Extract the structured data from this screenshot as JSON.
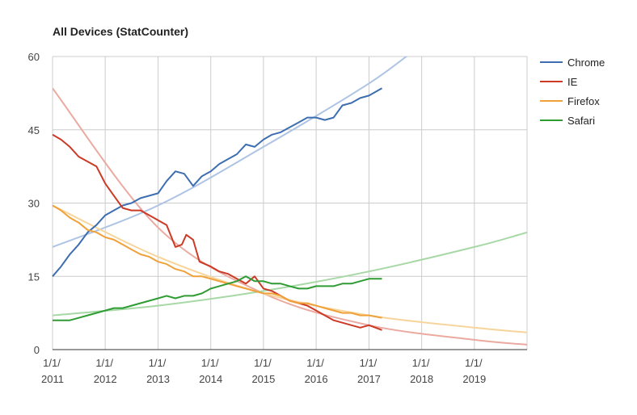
{
  "chart_data": {
    "type": "line",
    "title": "All Devices (StatCounter)",
    "xlabel": "",
    "ylabel": "",
    "xlim": [
      "2011-01-01",
      "2020-01-01"
    ],
    "ylim": [
      0,
      60
    ],
    "x_ticks": [
      {
        "value": "2011-01-01",
        "line1": "1/1/",
        "line2": "2011"
      },
      {
        "value": "2012-01-01",
        "line1": "1/1/",
        "line2": "2012"
      },
      {
        "value": "2013-01-01",
        "line1": "1/1/",
        "line2": "2013"
      },
      {
        "value": "2014-01-01",
        "line1": "1/1/",
        "line2": "2014"
      },
      {
        "value": "2015-01-01",
        "line1": "1/1/",
        "line2": "2015"
      },
      {
        "value": "2016-01-01",
        "line1": "1/1/",
        "line2": "2016"
      },
      {
        "value": "2017-01-01",
        "line1": "1/1/",
        "line2": "2017"
      },
      {
        "value": "2018-01-01",
        "line1": "1/1/",
        "line2": "2018"
      },
      {
        "value": "2019-01-01",
        "line1": "1/1/",
        "line2": "2019"
      }
    ],
    "y_ticks": [
      {
        "value": 0,
        "label": "0"
      },
      {
        "value": 15,
        "label": "15"
      },
      {
        "value": 30,
        "label": "30"
      },
      {
        "value": 45,
        "label": "45"
      },
      {
        "value": 60,
        "label": "60"
      }
    ],
    "grid": true,
    "legend_position": "right",
    "series": [
      {
        "name": "Chrome",
        "color": "#3d6eb1",
        "trend_color": "#aec4e4",
        "trend": {
          "kind": "exponential",
          "points": [
            [
              "2011-01-01",
              21.0
            ],
            [
              "2013-01-01",
              29.5
            ],
            [
              "2015-01-01",
              41.5
            ],
            [
              "2017-01-01",
              54.5
            ],
            [
              "2018-01-01",
              62.5
            ]
          ]
        },
        "points": [
          [
            "2011-01-01",
            15.0
          ],
          [
            "2011-03-01",
            17.0
          ],
          [
            "2011-05-01",
            19.5
          ],
          [
            "2011-07-01",
            21.5
          ],
          [
            "2011-09-01",
            24.0
          ],
          [
            "2011-11-01",
            25.5
          ],
          [
            "2012-01-01",
            27.5
          ],
          [
            "2012-03-01",
            28.5
          ],
          [
            "2012-05-01",
            29.5
          ],
          [
            "2012-07-01",
            30.0
          ],
          [
            "2012-09-01",
            31.0
          ],
          [
            "2012-11-01",
            31.5
          ],
          [
            "2013-01-01",
            32.0
          ],
          [
            "2013-03-01",
            34.5
          ],
          [
            "2013-05-01",
            36.5
          ],
          [
            "2013-07-01",
            36.0
          ],
          [
            "2013-09-01",
            33.5
          ],
          [
            "2013-11-01",
            35.5
          ],
          [
            "2014-01-01",
            36.5
          ],
          [
            "2014-03-01",
            38.0
          ],
          [
            "2014-05-01",
            39.0
          ],
          [
            "2014-07-01",
            40.0
          ],
          [
            "2014-09-01",
            42.0
          ],
          [
            "2014-11-01",
            41.5
          ],
          [
            "2015-01-01",
            43.0
          ],
          [
            "2015-03-01",
            44.0
          ],
          [
            "2015-05-01",
            44.5
          ],
          [
            "2015-07-01",
            45.5
          ],
          [
            "2015-09-01",
            46.5
          ],
          [
            "2015-11-01",
            47.5
          ],
          [
            "2016-01-01",
            47.5
          ],
          [
            "2016-03-01",
            47.0
          ],
          [
            "2016-05-01",
            47.5
          ],
          [
            "2016-07-01",
            50.0
          ],
          [
            "2016-09-01",
            50.5
          ],
          [
            "2016-11-01",
            51.5
          ],
          [
            "2017-01-01",
            52.0
          ],
          [
            "2017-04-01",
            53.5
          ]
        ]
      },
      {
        "name": "IE",
        "color": "#cc3a26",
        "trend_color": "#eaaaa0",
        "trend": {
          "kind": "exponential",
          "points": [
            [
              "2011-01-01",
              53.5
            ],
            [
              "2013-01-01",
              25.0
            ],
            [
              "2015-01-01",
              11.5
            ],
            [
              "2017-01-01",
              5.0
            ],
            [
              "2019-01-01",
              2.0
            ],
            [
              "2020-01-01",
              1.0
            ]
          ]
        },
        "points": [
          [
            "2011-01-01",
            44.0
          ],
          [
            "2011-03-01",
            43.0
          ],
          [
            "2011-05-01",
            41.5
          ],
          [
            "2011-07-01",
            39.5
          ],
          [
            "2011-09-01",
            38.5
          ],
          [
            "2011-11-01",
            37.5
          ],
          [
            "2012-01-01",
            34.0
          ],
          [
            "2012-03-01",
            31.5
          ],
          [
            "2012-05-01",
            29.0
          ],
          [
            "2012-07-01",
            28.5
          ],
          [
            "2012-09-01",
            28.5
          ],
          [
            "2012-11-01",
            27.5
          ],
          [
            "2013-01-01",
            26.5
          ],
          [
            "2013-03-01",
            25.5
          ],
          [
            "2013-05-01",
            21.0
          ],
          [
            "2013-06-15",
            21.5
          ],
          [
            "2013-07-15",
            23.5
          ],
          [
            "2013-09-01",
            22.5
          ],
          [
            "2013-10-15",
            18.0
          ],
          [
            "2014-01-01",
            17.0
          ],
          [
            "2014-03-01",
            16.0
          ],
          [
            "2014-05-01",
            15.5
          ],
          [
            "2014-07-01",
            14.5
          ],
          [
            "2014-09-01",
            13.5
          ],
          [
            "2014-11-01",
            15.0
          ],
          [
            "2015-01-01",
            12.5
          ],
          [
            "2015-03-01",
            12.0
          ],
          [
            "2015-05-01",
            11.0
          ],
          [
            "2015-07-01",
            10.0
          ],
          [
            "2015-09-01",
            9.5
          ],
          [
            "2015-11-01",
            9.0
          ],
          [
            "2016-01-01",
            8.0
          ],
          [
            "2016-03-01",
            7.0
          ],
          [
            "2016-05-01",
            6.0
          ],
          [
            "2016-07-01",
            5.5
          ],
          [
            "2016-09-01",
            5.0
          ],
          [
            "2016-11-01",
            4.5
          ],
          [
            "2017-01-01",
            5.0
          ],
          [
            "2017-04-01",
            4.0
          ]
        ]
      },
      {
        "name": "Firefox",
        "color": "#f0a13a",
        "trend_color": "#f7d49a",
        "trend": {
          "kind": "exponential",
          "points": [
            [
              "2011-01-01",
              29.5
            ],
            [
              "2013-01-01",
              19.0
            ],
            [
              "2015-01-01",
              11.5
            ],
            [
              "2017-01-01",
              7.0
            ],
            [
              "2019-01-01",
              4.5
            ],
            [
              "2020-01-01",
              3.5
            ]
          ]
        },
        "points": [
          [
            "2011-01-01",
            29.5
          ],
          [
            "2011-03-01",
            28.5
          ],
          [
            "2011-05-01",
            27.0
          ],
          [
            "2011-07-01",
            26.0
          ],
          [
            "2011-09-01",
            24.5
          ],
          [
            "2011-11-01",
            24.0
          ],
          [
            "2012-01-01",
            23.0
          ],
          [
            "2012-03-01",
            22.5
          ],
          [
            "2012-05-01",
            21.5
          ],
          [
            "2012-07-01",
            20.5
          ],
          [
            "2012-09-01",
            19.5
          ],
          [
            "2012-11-01",
            19.0
          ],
          [
            "2013-01-01",
            18.0
          ],
          [
            "2013-03-01",
            17.5
          ],
          [
            "2013-05-01",
            16.5
          ],
          [
            "2013-07-01",
            16.0
          ],
          [
            "2013-09-01",
            15.0
          ],
          [
            "2013-11-01",
            15.0
          ],
          [
            "2014-01-01",
            14.5
          ],
          [
            "2014-03-01",
            14.0
          ],
          [
            "2014-05-01",
            13.5
          ],
          [
            "2014-07-01",
            13.0
          ],
          [
            "2014-09-01",
            12.5
          ],
          [
            "2014-11-01",
            12.0
          ],
          [
            "2015-01-01",
            11.5
          ],
          [
            "2015-03-01",
            11.5
          ],
          [
            "2015-05-01",
            11.0
          ],
          [
            "2015-07-01",
            10.0
          ],
          [
            "2015-09-01",
            9.5
          ],
          [
            "2015-11-01",
            9.5
          ],
          [
            "2016-01-01",
            9.0
          ],
          [
            "2016-03-01",
            8.5
          ],
          [
            "2016-05-01",
            8.0
          ],
          [
            "2016-07-01",
            7.5
          ],
          [
            "2016-09-01",
            7.5
          ],
          [
            "2016-11-01",
            7.0
          ],
          [
            "2017-01-01",
            7.0
          ],
          [
            "2017-04-01",
            6.5
          ]
        ]
      },
      {
        "name": "Safari",
        "color": "#2e9c33",
        "trend_color": "#a7d8a6",
        "trend": {
          "kind": "exponential",
          "points": [
            [
              "2011-01-01",
              7.0
            ],
            [
              "2013-01-01",
              9.0
            ],
            [
              "2015-01-01",
              12.0
            ],
            [
              "2017-01-01",
              16.0
            ],
            [
              "2019-01-01",
              21.0
            ],
            [
              "2020-01-01",
              24.0
            ]
          ]
        },
        "points": [
          [
            "2011-01-01",
            6.0
          ],
          [
            "2011-03-01",
            6.0
          ],
          [
            "2011-05-01",
            6.0
          ],
          [
            "2011-07-01",
            6.5
          ],
          [
            "2011-09-01",
            7.0
          ],
          [
            "2011-11-01",
            7.5
          ],
          [
            "2012-01-01",
            8.0
          ],
          [
            "2012-03-01",
            8.5
          ],
          [
            "2012-05-01",
            8.5
          ],
          [
            "2012-07-01",
            9.0
          ],
          [
            "2012-09-01",
            9.5
          ],
          [
            "2012-11-01",
            10.0
          ],
          [
            "2013-01-01",
            10.5
          ],
          [
            "2013-03-01",
            11.0
          ],
          [
            "2013-05-01",
            10.5
          ],
          [
            "2013-07-01",
            11.0
          ],
          [
            "2013-09-01",
            11.0
          ],
          [
            "2013-11-01",
            11.5
          ],
          [
            "2014-01-01",
            12.5
          ],
          [
            "2014-03-01",
            13.0
          ],
          [
            "2014-05-01",
            13.5
          ],
          [
            "2014-07-01",
            14.0
          ],
          [
            "2014-09-01",
            15.0
          ],
          [
            "2014-11-01",
            14.0
          ],
          [
            "2015-01-01",
            14.0
          ],
          [
            "2015-03-01",
            13.5
          ],
          [
            "2015-05-01",
            13.5
          ],
          [
            "2015-07-01",
            13.0
          ],
          [
            "2015-09-01",
            12.5
          ],
          [
            "2015-11-01",
            12.5
          ],
          [
            "2016-01-01",
            13.0
          ],
          [
            "2016-03-01",
            13.0
          ],
          [
            "2016-05-01",
            13.0
          ],
          [
            "2016-07-01",
            13.5
          ],
          [
            "2016-09-01",
            13.5
          ],
          [
            "2016-11-01",
            14.0
          ],
          [
            "2017-01-01",
            14.5
          ],
          [
            "2017-04-01",
            14.5
          ]
        ]
      }
    ]
  }
}
